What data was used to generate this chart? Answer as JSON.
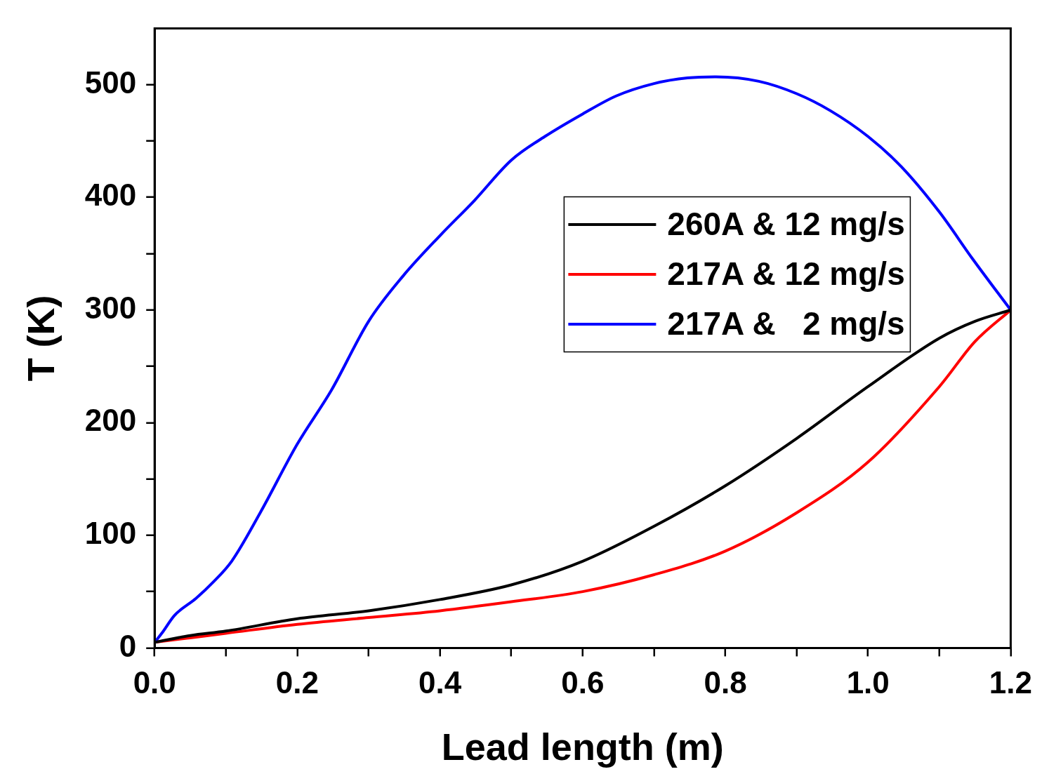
{
  "chart_data": {
    "type": "line",
    "xlabel": "Lead length (m)",
    "ylabel": "T (K)",
    "xlim": [
      0,
      1.2
    ],
    "ylim": [
      0,
      550
    ],
    "xticks": [
      {
        "value": 0,
        "label": "0.0"
      },
      {
        "value": 0.1,
        "label": null
      },
      {
        "value": 0.2,
        "label": "0.2"
      },
      {
        "value": 0.3,
        "label": null
      },
      {
        "value": 0.4,
        "label": "0.4"
      },
      {
        "value": 0.5,
        "label": null
      },
      {
        "value": 0.6,
        "label": "0.6"
      },
      {
        "value": 0.7,
        "label": null
      },
      {
        "value": 0.8,
        "label": "0.8"
      },
      {
        "value": 0.9,
        "label": null
      },
      {
        "value": 1.0,
        "label": "1.0"
      },
      {
        "value": 1.1,
        "label": null
      },
      {
        "value": 1.2,
        "label": "1.2"
      }
    ],
    "yticks": [
      0,
      {
        "value": 50,
        "label": null
      },
      100,
      {
        "value": 150,
        "label": null
      },
      200,
      {
        "value": 250,
        "label": null
      },
      300,
      {
        "value": 350,
        "label": null
      },
      400,
      {
        "value": 450,
        "label": null
      },
      500
    ],
    "grid": false,
    "legend": "top right",
    "marker": "none",
    "line_style": "solid",
    "series": [
      {
        "name": "260A & 12 mg/s",
        "color": "#000000",
        "x": [
          0,
          0.05,
          0.1,
          0.2,
          0.3,
          0.4,
          0.5,
          0.6,
          0.7,
          0.8,
          0.9,
          1.0,
          1.1,
          1.15,
          1.2
        ],
        "values": [
          5,
          11,
          15,
          26,
          33,
          43,
          56,
          77,
          108,
          144,
          186,
          232,
          275,
          290,
          300
        ]
      },
      {
        "name": "217A & 12 mg/s",
        "color": "#ff0000",
        "x": [
          0,
          0.05,
          0.1,
          0.2,
          0.3,
          0.4,
          0.5,
          0.6,
          0.7,
          0.8,
          0.9,
          1.0,
          1.1,
          1.15,
          1.2
        ],
        "values": [
          5,
          9,
          13,
          21,
          27,
          33,
          41,
          50,
          65,
          86,
          120,
          165,
          232,
          272,
          300
        ]
      },
      {
        "name": "217A &   2 mg/s",
        "color": "#0000ff",
        "x": [
          0,
          0.01,
          0.028,
          0.058,
          0.083,
          0.108,
          0.148,
          0.2,
          0.248,
          0.3,
          0.348,
          0.4,
          0.448,
          0.5,
          0.547,
          0.6,
          0.647,
          0.7,
          0.747,
          0.787,
          0.847,
          0.9,
          0.947,
          1.0,
          1.047,
          1.1,
          1.147,
          1.2
        ],
        "values": [
          5,
          13,
          29,
          44,
          59,
          77,
          120,
          181,
          229,
          290,
          330,
          366,
          397,
          433,
          454,
          474,
          490,
          501,
          506,
          507,
          503,
          492,
          477,
          454,
          427,
          387,
          345,
          300
        ]
      }
    ]
  }
}
